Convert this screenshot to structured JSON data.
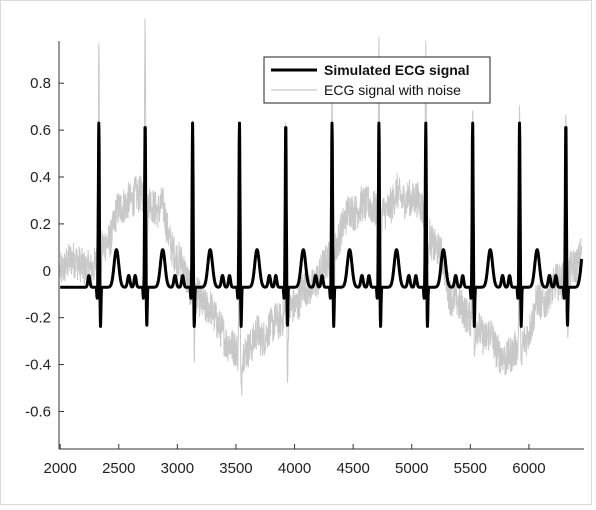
{
  "chart_data": {
    "type": "line",
    "title": "",
    "xlabel": "",
    "ylabel": "",
    "xlim": [
      1990,
      6470
    ],
    "ylim": [
      -0.76,
      0.98
    ],
    "xticks": [
      2000,
      2500,
      3000,
      3500,
      4000,
      4500,
      5000,
      5500,
      6000
    ],
    "yticks": [
      -0.6,
      -0.4,
      -0.2,
      0,
      0.2,
      0.4,
      0.6,
      0.8
    ],
    "xtick_labels": [
      "2000",
      "2500",
      "3000",
      "3500",
      "4000",
      "4500",
      "5000",
      "5500",
      "6000"
    ],
    "ytick_labels": [
      "-0.6",
      "-0.4",
      "-0.2",
      "0",
      "0.2",
      "0.4",
      "0.6",
      "0.8"
    ],
    "grid": false,
    "legend_position": "top-right",
    "series": [
      {
        "name": "Simulated ECG signal",
        "color": "#000000",
        "style": "thick",
        "r_peak_x": [
          2330,
          2725,
          3130,
          3530,
          3925,
          4320,
          4720,
          5120,
          5520,
          5920,
          6315
        ],
        "r_peak_value": 0.63,
        "s_wave_value": -0.24,
        "q_wave_value": -0.12,
        "t_wave_value": 0.09,
        "p_wave_value": -0.02,
        "baseline_value": -0.07,
        "start_x": 2000,
        "end_x": 6450
      },
      {
        "name": "ECG signal with noise",
        "color": "#c8c8c8",
        "style": "thin",
        "drift_x": [
          2000,
          2100,
          2250,
          2400,
          2550,
          2700,
          2850,
          3000,
          3150,
          3300,
          3450,
          3550,
          3700,
          3850,
          4000,
          4150,
          4300,
          4450,
          4600,
          4750,
          4900,
          5050,
          5200,
          5350,
          5500,
          5650,
          5800,
          5950,
          6100,
          6250,
          6400,
          6450
        ],
        "drift_values": [
          0.0,
          0.05,
          0.0,
          0.12,
          0.28,
          0.33,
          0.25,
          0.05,
          -0.1,
          -0.2,
          -0.32,
          -0.35,
          -0.3,
          -0.22,
          -0.15,
          -0.07,
          0.05,
          0.22,
          0.28,
          0.25,
          0.3,
          0.3,
          0.1,
          -0.12,
          -0.2,
          -0.3,
          -0.38,
          -0.3,
          -0.15,
          -0.05,
          0.02,
          0.05
        ],
        "r_peak_values": [
          0.87,
          0.98,
          0.6,
          0.5,
          0.55,
          0.65,
          0.92,
          0.88,
          0.62,
          0.6,
          0.55
        ],
        "s_wave_values": [
          -0.2,
          -0.15,
          -0.45,
          -0.6,
          -0.55,
          -0.35,
          -0.1,
          -0.1,
          -0.4,
          -0.5,
          -0.4
        ]
      }
    ]
  }
}
